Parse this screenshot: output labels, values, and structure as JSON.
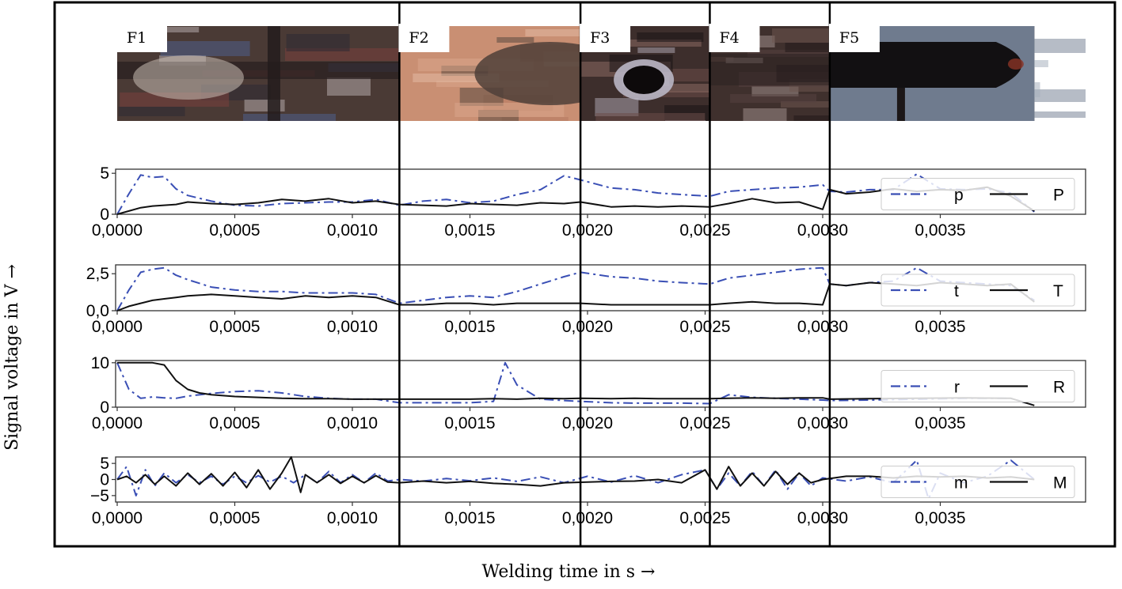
{
  "figure": {
    "ylabel": "Signal voltage in V →",
    "xlabel": "Welding time in s →"
  },
  "frames": [
    {
      "label": "F1",
      "t_start": 0.0,
      "t_end": 0.0012,
      "image": "weld-micrograph-crossing-strips",
      "colors": [
        "#4a3a35",
        "#7a3f3c",
        "#b2a7a8",
        "#2d2a33",
        "#4f5f8a"
      ]
    },
    {
      "label": "F2",
      "t_start": 0.0012,
      "t_end": 0.00197,
      "image": "weld-micrograph-copper-surface",
      "colors": [
        "#c98f73",
        "#d9a68a",
        "#5a4a40",
        "#b57a60",
        "#e2b9a2"
      ]
    },
    {
      "label": "F3",
      "t_start": 0.00197,
      "t_end": 0.00252,
      "image": "weld-micrograph-crater-with-hole",
      "colors": [
        "#3d2e2c",
        "#6b4d49",
        "#aaa2ad",
        "#1a1416",
        "#8a6a63"
      ]
    },
    {
      "label": "F4",
      "t_start": 0.00252,
      "t_end": 0.00303,
      "image": "weld-micrograph-melted-region",
      "colors": [
        "#3f302d",
        "#6d554f",
        "#9d8d88",
        "#221a19",
        "#55423f"
      ]
    },
    {
      "label": "F5",
      "t_start": 0.00303,
      "t_end": 0.0039,
      "image": "weld-micrograph-electrode-tip",
      "colors": [
        "#141214",
        "#7a8597",
        "#5b6a80",
        "#3b2f2c",
        "#a7b0bd"
      ]
    }
  ],
  "chart_data": [
    {
      "type": "line",
      "ylim": [
        0,
        5.5
      ],
      "yticks": [
        "0",
        "5"
      ],
      "ytick_values": [
        0,
        5
      ],
      "xlim": [
        0,
        0.0039
      ],
      "xticks": [
        "0,0000",
        "0,0005",
        "0,0010",
        "0,0015",
        "0,0020",
        "0,0025",
        "0,0030",
        "0,0035"
      ],
      "xtick_values": [
        0,
        0.0005,
        0.001,
        0.0015,
        0.002,
        0.0025,
        0.003,
        0.0035
      ],
      "legend": "right",
      "series": [
        {
          "name": "p",
          "style": "dashdot",
          "color": "#3a4fb5",
          "x": [
            0,
            5e-05,
            0.0001,
            0.00015,
            0.0002,
            0.00025,
            0.0003,
            0.0004,
            0.0005,
            0.0006,
            0.0007,
            0.0008,
            0.0009,
            0.001,
            0.0011,
            0.0012,
            0.0013,
            0.0014,
            0.0015,
            0.0016,
            0.0017,
            0.0018,
            0.0019,
            0.00197,
            0.0021,
            0.0022,
            0.0023,
            0.0024,
            0.00252,
            0.0026,
            0.0027,
            0.0028,
            0.0029,
            0.003,
            0.00303,
            0.0031,
            0.0032,
            0.0033,
            0.0034,
            0.0035,
            0.0036,
            0.0037,
            0.0038,
            0.0039
          ],
          "y": [
            0,
            2.5,
            4.8,
            4.5,
            4.6,
            3.1,
            2.3,
            1.6,
            1.1,
            1.0,
            1.3,
            1.4,
            1.5,
            1.5,
            1.8,
            1.1,
            1.6,
            1.8,
            1.4,
            1.6,
            2.4,
            3.0,
            4.7,
            4.2,
            3.2,
            3.0,
            2.6,
            2.4,
            2.2,
            2.8,
            3.0,
            3.2,
            3.3,
            3.6,
            2.8,
            2.7,
            3.0,
            3.0,
            4.9,
            3.1,
            3.0,
            3.1,
            2.6,
            0.3
          ]
        },
        {
          "name": "P",
          "style": "solid",
          "color": "#111111",
          "x": [
            0,
            5e-05,
            0.0001,
            0.00015,
            0.0002,
            0.00025,
            0.0003,
            0.0004,
            0.0005,
            0.0006,
            0.0007,
            0.0008,
            0.0009,
            0.001,
            0.0011,
            0.0012,
            0.0013,
            0.0014,
            0.0015,
            0.0016,
            0.0017,
            0.0018,
            0.0019,
            0.00197,
            0.0021,
            0.0022,
            0.0023,
            0.0024,
            0.00252,
            0.0026,
            0.0027,
            0.0028,
            0.0029,
            0.003,
            0.00303,
            0.0031,
            0.0032,
            0.0033,
            0.0034,
            0.0035,
            0.0036,
            0.0037,
            0.0038,
            0.0039
          ],
          "y": [
            0,
            0.4,
            0.8,
            1.0,
            1.1,
            1.2,
            1.5,
            1.3,
            1.2,
            1.4,
            1.8,
            1.6,
            1.9,
            1.4,
            1.6,
            1.2,
            1.1,
            1.0,
            1.3,
            1.2,
            1.1,
            1.4,
            1.3,
            1.5,
            0.9,
            1.0,
            0.9,
            1.0,
            0.9,
            1.3,
            1.9,
            1.4,
            1.5,
            0.6,
            3.0,
            2.5,
            2.7,
            3.1,
            2.8,
            3.0,
            2.9,
            3.3,
            2.2,
            0.4
          ]
        }
      ]
    },
    {
      "type": "line",
      "ylim": [
        0,
        3.1
      ],
      "yticks": [
        "0,0",
        "2,5"
      ],
      "ytick_values": [
        0,
        2.5
      ],
      "xlim": [
        0,
        0.0039
      ],
      "xticks": [
        "0,0000",
        "0,0005",
        "0,0010",
        "0,0015",
        "0,0020",
        "0,0025",
        "0,0030",
        "0,0035"
      ],
      "xtick_values": [
        0,
        0.0005,
        0.001,
        0.0015,
        0.002,
        0.0025,
        0.003,
        0.0035
      ],
      "legend": "right",
      "series": [
        {
          "name": "t",
          "style": "dashdot",
          "color": "#3a4fb5",
          "x": [
            0,
            5e-05,
            0.0001,
            0.00015,
            0.0002,
            0.00025,
            0.0003,
            0.0004,
            0.0005,
            0.0006,
            0.0007,
            0.0008,
            0.0009,
            0.001,
            0.0011,
            0.0012,
            0.0013,
            0.0014,
            0.0015,
            0.0016,
            0.0017,
            0.0018,
            0.0019,
            0.00197,
            0.0021,
            0.0022,
            0.0023,
            0.0024,
            0.00252,
            0.0026,
            0.0027,
            0.0028,
            0.0029,
            0.003,
            0.00303,
            0.0031,
            0.0032,
            0.0033,
            0.0034,
            0.0035,
            0.0036,
            0.0037,
            0.0038,
            0.0039
          ],
          "y": [
            0,
            1.4,
            2.6,
            2.8,
            2.9,
            2.4,
            2.1,
            1.6,
            1.4,
            1.3,
            1.3,
            1.2,
            1.2,
            1.2,
            1.1,
            0.5,
            0.7,
            0.9,
            1.0,
            0.9,
            1.3,
            1.8,
            2.3,
            2.6,
            2.3,
            2.2,
            2.0,
            1.9,
            1.8,
            2.2,
            2.4,
            2.6,
            2.8,
            2.9,
            1.8,
            1.7,
            1.9,
            2.0,
            2.9,
            2.0,
            1.9,
            1.8,
            1.7,
            0.7
          ]
        },
        {
          "name": "T",
          "style": "solid",
          "color": "#111111",
          "x": [
            0,
            5e-05,
            0.0001,
            0.00015,
            0.0002,
            0.00025,
            0.0003,
            0.0004,
            0.0005,
            0.0006,
            0.0007,
            0.0008,
            0.0009,
            0.001,
            0.0011,
            0.0012,
            0.0013,
            0.0014,
            0.0015,
            0.0016,
            0.0017,
            0.0018,
            0.0019,
            0.00197,
            0.0021,
            0.0022,
            0.0023,
            0.0024,
            0.00252,
            0.0026,
            0.0027,
            0.0028,
            0.0029,
            0.003,
            0.00303,
            0.0031,
            0.0032,
            0.0033,
            0.0034,
            0.0035,
            0.0036,
            0.0037,
            0.0038,
            0.0039
          ],
          "y": [
            0,
            0.3,
            0.5,
            0.7,
            0.8,
            0.9,
            1.0,
            1.1,
            1.0,
            0.9,
            0.8,
            1.0,
            0.9,
            1.0,
            0.9,
            0.4,
            0.4,
            0.5,
            0.5,
            0.4,
            0.5,
            0.5,
            0.5,
            0.5,
            0.4,
            0.4,
            0.4,
            0.4,
            0.4,
            0.5,
            0.6,
            0.5,
            0.5,
            0.4,
            1.8,
            1.7,
            1.9,
            1.8,
            1.7,
            1.9,
            1.8,
            1.7,
            1.8,
            0.6
          ]
        }
      ]
    },
    {
      "type": "line",
      "ylim": [
        0,
        10.5
      ],
      "yticks": [
        "0",
        "10"
      ],
      "ytick_values": [
        0,
        10
      ],
      "xlim": [
        0,
        0.0039
      ],
      "xticks": [
        "0,0000",
        "0,0005",
        "0,0010",
        "0,0015",
        "0,0020",
        "0,0025",
        "0,0030",
        "0,0035"
      ],
      "xtick_values": [
        0,
        0.0005,
        0.001,
        0.0015,
        0.002,
        0.0025,
        0.003,
        0.0035
      ],
      "legend": "right",
      "series": [
        {
          "name": "r",
          "style": "dashdot",
          "color": "#3a4fb5",
          "x": [
            0,
            5e-05,
            0.0001,
            0.00015,
            0.0002,
            0.00025,
            0.0003,
            0.0004,
            0.0005,
            0.0006,
            0.0007,
            0.0008,
            0.0009,
            0.001,
            0.0011,
            0.0012,
            0.0013,
            0.0014,
            0.0015,
            0.0016,
            0.00165,
            0.0017,
            0.0018,
            0.0019,
            0.00197,
            0.0021,
            0.0022,
            0.0023,
            0.0024,
            0.00252,
            0.0026,
            0.0027,
            0.0028,
            0.0029,
            0.003,
            0.00303,
            0.0032,
            0.0034,
            0.0036,
            0.0038,
            0.0039
          ],
          "y": [
            10,
            4.0,
            2.0,
            2.3,
            2.1,
            2.0,
            2.5,
            3.1,
            3.5,
            3.7,
            3.2,
            2.4,
            2.0,
            1.8,
            1.8,
            1.0,
            1.0,
            1.0,
            1.0,
            1.3,
            10.0,
            5.0,
            1.8,
            1.5,
            1.3,
            1.0,
            0.9,
            0.9,
            0.9,
            0.8,
            2.8,
            2.2,
            2.0,
            1.8,
            1.6,
            1.5,
            1.6,
            1.8,
            2.0,
            2.0,
            0.4
          ]
        },
        {
          "name": "R",
          "style": "solid",
          "color": "#111111",
          "x": [
            0,
            5e-05,
            0.0001,
            0.00015,
            0.0002,
            0.00025,
            0.0003,
            0.00035,
            0.0004,
            0.0005,
            0.0006,
            0.0007,
            0.0008,
            0.0009,
            0.001,
            0.0011,
            0.0012,
            0.0013,
            0.0014,
            0.0015,
            0.0016,
            0.0017,
            0.0018,
            0.0019,
            0.00197,
            0.0021,
            0.0022,
            0.0023,
            0.0024,
            0.00252,
            0.0026,
            0.0027,
            0.0028,
            0.0029,
            0.003,
            0.00303,
            0.0032,
            0.0034,
            0.0036,
            0.0038,
            0.0039
          ],
          "y": [
            10,
            10,
            10,
            10,
            9.5,
            6.0,
            4.0,
            3.2,
            2.8,
            2.4,
            2.2,
            2.0,
            1.9,
            1.9,
            1.8,
            1.8,
            1.8,
            1.8,
            1.8,
            1.8,
            1.9,
            1.8,
            2.0,
            1.9,
            2.0,
            1.9,
            2.0,
            1.9,
            1.9,
            1.9,
            2.0,
            2.1,
            2.0,
            2.1,
            2.1,
            1.8,
            1.9,
            2.0,
            2.1,
            2.0,
            0.4
          ]
        }
      ]
    },
    {
      "type": "line",
      "ylim": [
        -7,
        7
      ],
      "yticks": [
        "5",
        "0",
        "−5"
      ],
      "ytick_values": [
        5,
        0,
        -5
      ],
      "xlim": [
        0,
        0.0039
      ],
      "xticks": [
        "0,0000",
        "0,0005",
        "0,0010",
        "0,0015",
        "0,0020",
        "0,0025",
        "0,0030",
        "0,0035"
      ],
      "xtick_values": [
        0,
        0.0005,
        0.001,
        0.0015,
        0.002,
        0.0025,
        0.003,
        0.0035
      ],
      "legend": "right",
      "series": [
        {
          "name": "m",
          "style": "dashdot",
          "color": "#3a4fb5",
          "x": [
            0,
            4e-05,
            8e-05,
            0.00012,
            0.00016,
            0.0002,
            0.00025,
            0.0003,
            0.00035,
            0.0004,
            0.00045,
            0.0005,
            0.00055,
            0.0006,
            0.00065,
            0.0007,
            0.00075,
            0.0008,
            0.00085,
            0.0009,
            0.00095,
            0.001,
            0.00105,
            0.0011,
            0.00115,
            0.0012,
            0.0013,
            0.0014,
            0.0015,
            0.0016,
            0.0017,
            0.0018,
            0.0019,
            0.002,
            0.0021,
            0.0022,
            0.0023,
            0.0024,
            0.0025,
            0.00255,
            0.0026,
            0.00265,
            0.0027,
            0.00275,
            0.0028,
            0.00285,
            0.0029,
            0.00295,
            0.003,
            0.0031,
            0.0032,
            0.0033,
            0.0034,
            0.00345,
            0.0035,
            0.0036,
            0.0037,
            0.0038,
            0.0039
          ],
          "y": [
            0,
            4,
            -5,
            3,
            -2,
            2,
            -1,
            1.5,
            -1,
            1,
            -1.5,
            1,
            -1,
            1.2,
            -0.8,
            1,
            -1,
            1.5,
            -1,
            2.5,
            -1,
            1.5,
            -1,
            2,
            -0.5,
            0,
            -0.5,
            0.3,
            -0.4,
            0.5,
            -0.6,
            0.8,
            -1,
            1,
            -0.8,
            1.2,
            -1,
            1.5,
            3,
            -3,
            2,
            -2,
            2.5,
            -2,
            3,
            -3,
            2,
            -2,
            0.5,
            -0.5,
            0.8,
            -1,
            6,
            -6,
            2,
            -1,
            1,
            6,
            0
          ]
        },
        {
          "name": "M",
          "style": "solid",
          "color": "#111111",
          "x": [
            0,
            4e-05,
            8e-05,
            0.00012,
            0.00016,
            0.0002,
            0.00025,
            0.0003,
            0.00035,
            0.0004,
            0.00045,
            0.0005,
            0.00055,
            0.0006,
            0.00065,
            0.0007,
            0.00074,
            0.00078,
            0.0008,
            0.00085,
            0.0009,
            0.00095,
            0.001,
            0.00105,
            0.0011,
            0.00115,
            0.0012,
            0.0013,
            0.0014,
            0.0015,
            0.0016,
            0.0017,
            0.0018,
            0.0019,
            0.002,
            0.0021,
            0.0022,
            0.0023,
            0.0024,
            0.0025,
            0.00255,
            0.0026,
            0.00265,
            0.0027,
            0.00275,
            0.0028,
            0.00285,
            0.0029,
            0.00295,
            0.003,
            0.0031,
            0.0032,
            0.0033,
            0.0034,
            0.0035,
            0.0036,
            0.0037,
            0.0038,
            0.0039
          ],
          "y": [
            0,
            1,
            -1,
            1.5,
            -1.5,
            1,
            -2,
            2,
            -1.5,
            1.8,
            -2,
            2.2,
            -2.5,
            3,
            -3,
            2,
            7,
            -4,
            1.5,
            -1,
            1.5,
            -1.2,
            1,
            -1,
            1.2,
            -0.8,
            -1,
            -0.5,
            -1,
            -0.6,
            -1.2,
            -1.5,
            -2,
            -1,
            -0.8,
            -0.6,
            -0.5,
            0,
            -1,
            3,
            -3,
            4,
            -2,
            2,
            -2,
            2.5,
            -1.5,
            2,
            -1,
            0,
            1,
            1,
            0.5,
            1,
            0.8,
            1,
            0.5,
            0.8,
            0
          ]
        }
      ]
    }
  ]
}
